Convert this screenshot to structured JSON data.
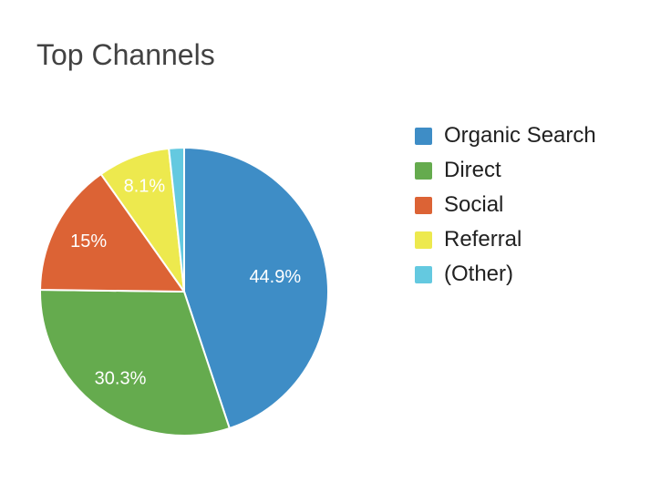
{
  "chart_data": {
    "type": "pie",
    "title": "Top Channels",
    "categories": [
      "Organic Search",
      "Direct",
      "Social",
      "Referral",
      "(Other)"
    ],
    "values": [
      44.9,
      30.3,
      15,
      8.1,
      1.7
    ],
    "slice_labels": [
      "44.9%",
      "30.3%",
      "15%",
      "8.1%",
      ""
    ],
    "colors": [
      "#3E8DC6",
      "#65AB4E",
      "#DC6335",
      "#EDE94E",
      "#64C9E0"
    ],
    "start_angle_deg": 0,
    "direction": "clockwise",
    "slice_border_color": "#FFFFFF",
    "slice_label_color": "#FFFFFF",
    "legend_position": "right",
    "legend_text_color": "#212121",
    "title_color": "#424242",
    "background_color": "#FFFFFF"
  }
}
